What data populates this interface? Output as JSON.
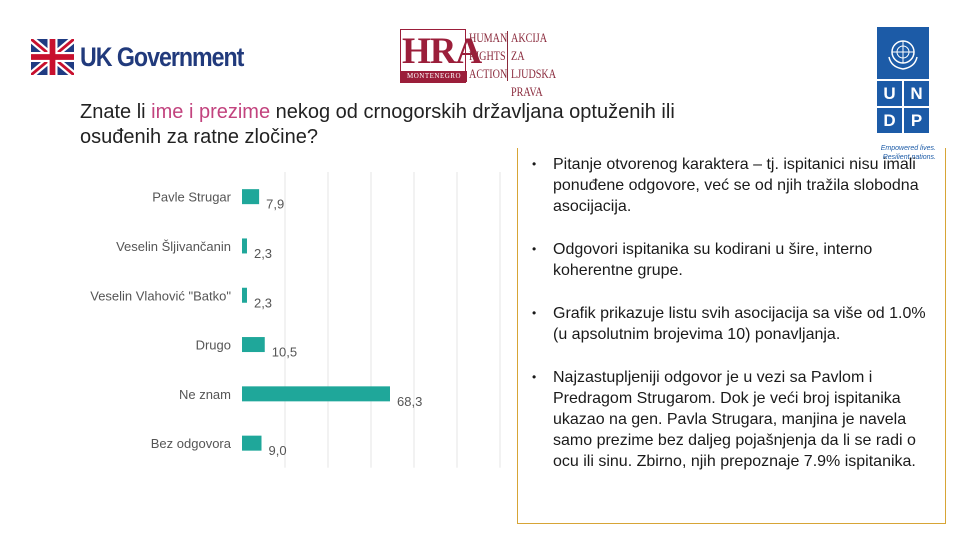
{
  "header": {
    "uk_gov_label": "UK Government",
    "hra": {
      "letters": "HRA",
      "montenegro": "MONTENEGRO",
      "lines_en": [
        "HUMAN",
        "RIGHTS",
        "ACTION"
      ],
      "lines_me": [
        "AKCIJA ZA",
        "LJUDSKA",
        "PRAVA"
      ]
    },
    "undp": {
      "letters": [
        "U",
        "N",
        "D",
        "P"
      ],
      "tagline_1": "Empowered lives.",
      "tagline_2": "Resilient nations."
    }
  },
  "title": {
    "part1": "Znate li ",
    "highlight": "ime i prezime",
    "part2": " nekog od crnogorskih državljana optuženih ili osuđenih za ratne zločine?"
  },
  "chart_data": {
    "type": "bar",
    "orientation": "horizontal",
    "categories": [
      "Pavle Strugar",
      "Veselin Šljivančanin",
      "Veselin Vlahović \"Batko\"",
      "Drugo",
      "Ne znam",
      "Bez odgovora"
    ],
    "values": [
      7.9,
      2.3,
      2.3,
      10.5,
      68.3,
      9.0
    ],
    "value_labels": [
      "7,9",
      "2,3",
      "2,3",
      "10,5",
      "68,3",
      "9,0"
    ],
    "xlim": [
      0,
      68.3
    ],
    "bar_color": "#1fa79a",
    "grid": true,
    "title": "",
    "xlabel": "",
    "ylabel": ""
  },
  "notes": [
    "Pitanje otvorenog karaktera – tj. ispitanici nisu imali ponuđene odgovore, već se od njih tražila slobodna asocijacija.",
    "Odgovori ispitanika su kodirani u šire, interno koherentne grupe.",
    "Grafik prikazuje listu svih asocijacija sa više od 1.0% (u apsolutnim brojevima 10) ponavljanja.",
    "Najzastupljeniji odgovor je u vezi sa Pavlom i Predragom Strugarom. Dok je veći broj ispitanika ukazao na gen. Pavla Strugara, manjina je navela samo prezime bez daljeg pojašnjenja da li se radi o ocu ili sinu. Zbirno, njih prepoznaje 7.9% ispitanika."
  ],
  "colors": {
    "accent_pink": "#c2437e",
    "ukgov_blue": "#213a7c",
    "hra_red": "#9b1e3a",
    "undp_blue": "#1c5ba7",
    "box_border": "#d7a536"
  }
}
